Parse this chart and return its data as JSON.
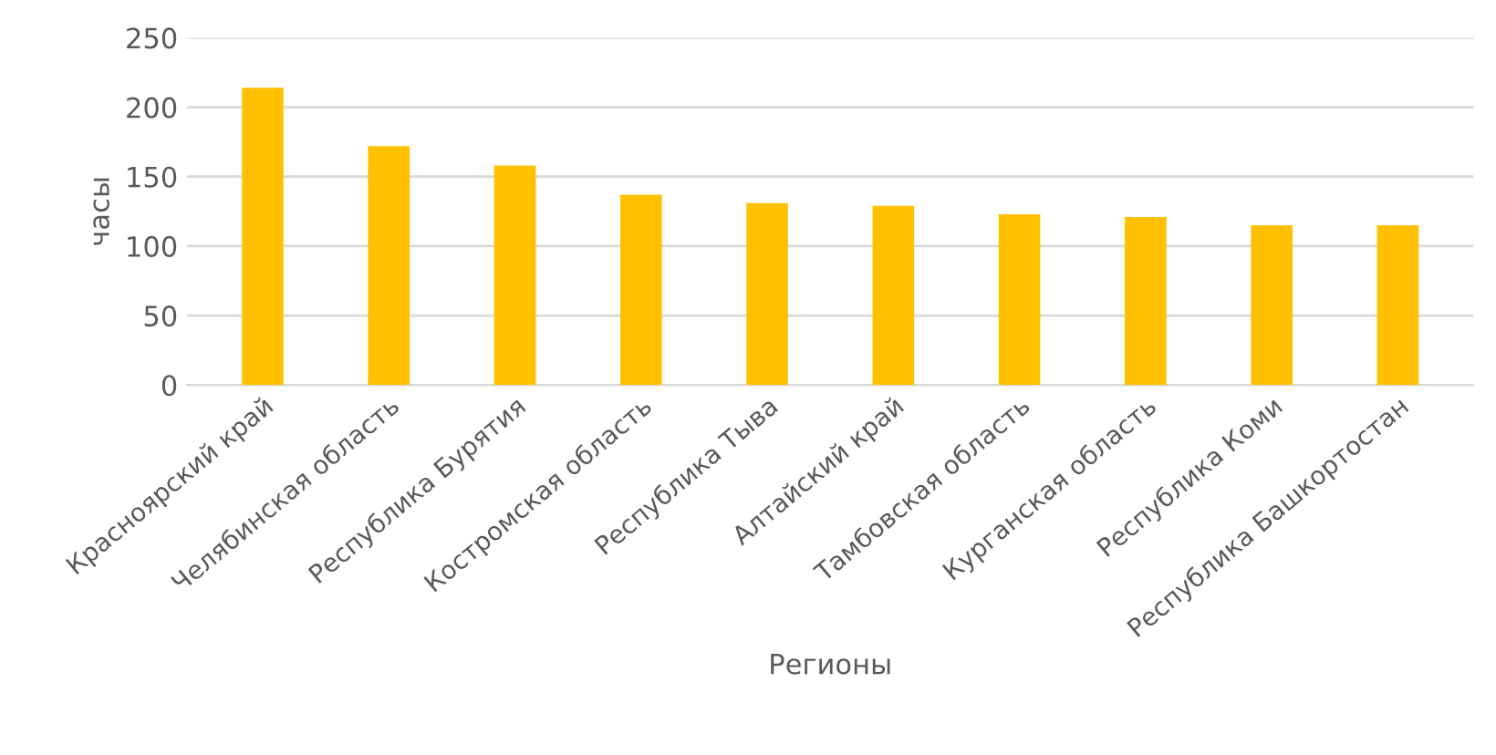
{
  "chart_data": {
    "type": "bar",
    "xlabel": "Регионы",
    "ylabel": "часы",
    "categories": [
      "Красноярский край",
      "Челябинская область",
      "Республика Бурятия",
      "Костромская область",
      "Республика Тыва",
      "Алтайский край",
      "Тамбовская область",
      "Курганская область",
      "Республика Коми",
      "Республика Башкортостан"
    ],
    "values": [
      214,
      172,
      158,
      137,
      131,
      129,
      123,
      121,
      115,
      115
    ],
    "color": "#ffc000",
    "ylim": [
      0,
      250
    ],
    "yticks": [
      0,
      50,
      100,
      150,
      200,
      250
    ],
    "grid": "y"
  }
}
